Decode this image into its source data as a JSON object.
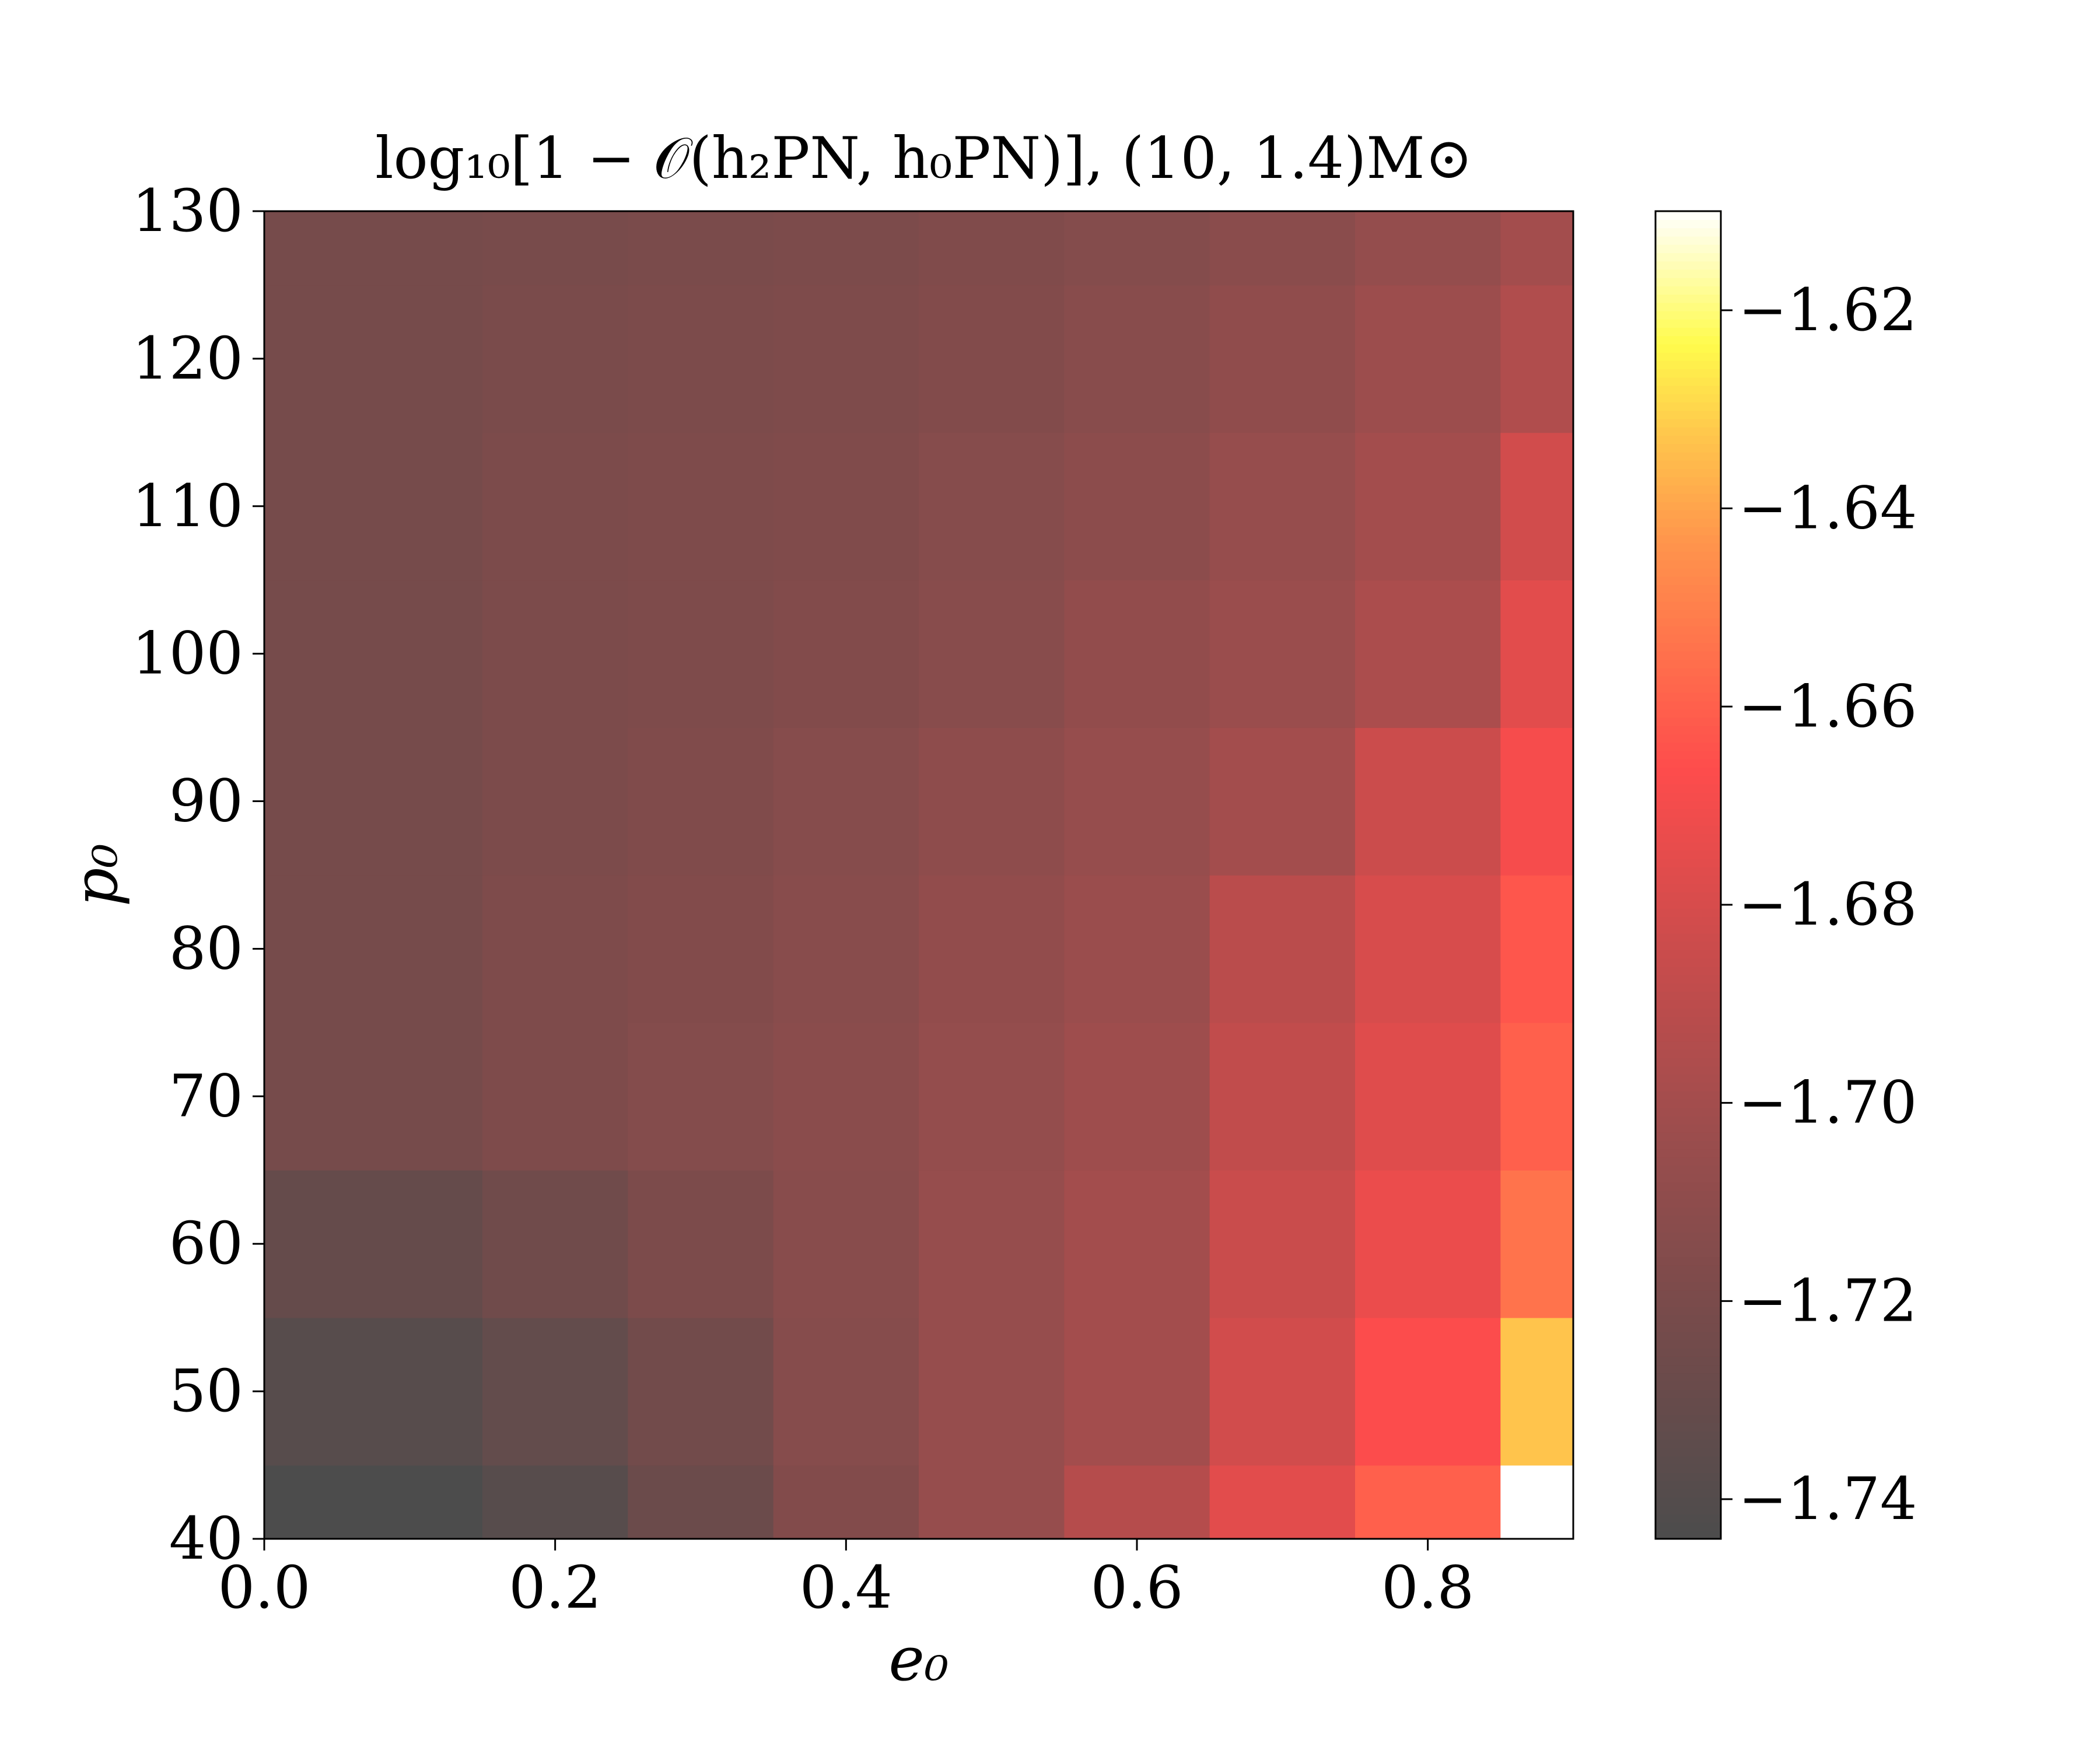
{
  "chart_data": {
    "type": "heatmap",
    "title": "log₁₀[1 − 𝒪(h₂PN, h₀PN)], (10, 1.4)M⊙",
    "xlabel": "e₀",
    "ylabel": "p₀",
    "x_ticks": [
      "0.0",
      "0.2",
      "0.4",
      "0.6",
      "0.8"
    ],
    "x_tick_values": [
      0.0,
      0.2,
      0.4,
      0.6,
      0.8
    ],
    "y_ticks": [
      "40",
      "50",
      "60",
      "70",
      "80",
      "90",
      "100",
      "110",
      "120",
      "130"
    ],
    "y_tick_values": [
      40,
      50,
      60,
      70,
      80,
      90,
      100,
      110,
      120,
      130
    ],
    "xlim": [
      0.0,
      0.9
    ],
    "ylim": [
      40,
      130
    ],
    "x_centers": [
      0.0,
      0.1,
      0.2,
      0.3,
      0.4,
      0.5,
      0.6,
      0.7,
      0.8,
      0.9
    ],
    "y_centers": [
      40,
      50,
      60,
      70,
      80,
      90,
      100,
      110,
      120,
      130
    ],
    "colormap": "hot (alpha 0.7)",
    "colorbar": {
      "vmin": -1.744,
      "vmax": -1.61,
      "ticks": [
        "−1.62",
        "−1.64",
        "−1.66",
        "−1.68",
        "−1.70",
        "−1.72",
        "−1.74"
      ],
      "tick_values": [
        -1.62,
        -1.64,
        -1.66,
        -1.68,
        -1.7,
        -1.72,
        -1.74
      ]
    },
    "values": [
      [
        -1.744,
        -1.744,
        -1.738,
        -1.728,
        -1.716,
        -1.706,
        -1.693,
        -1.676,
        -1.66,
        -1.61
      ],
      [
        -1.738,
        -1.738,
        -1.732,
        -1.724,
        -1.714,
        -1.706,
        -1.7,
        -1.682,
        -1.667,
        -1.633
      ],
      [
        -1.731,
        -1.731,
        -1.725,
        -1.719,
        -1.713,
        -1.706,
        -1.7,
        -1.685,
        -1.673,
        -1.654
      ],
      [
        -1.722,
        -1.722,
        -1.718,
        -1.715,
        -1.712,
        -1.707,
        -1.702,
        -1.688,
        -1.677,
        -1.66
      ],
      [
        -1.722,
        -1.722,
        -1.718,
        -1.716,
        -1.713,
        -1.708,
        -1.704,
        -1.691,
        -1.68,
        -1.663
      ],
      [
        -1.722,
        -1.722,
        -1.719,
        -1.717,
        -1.714,
        -1.71,
        -1.706,
        -1.7,
        -1.684,
        -1.669
      ],
      [
        -1.722,
        -1.722,
        -1.719,
        -1.718,
        -1.716,
        -1.713,
        -1.708,
        -1.704,
        -1.697,
        -1.676
      ],
      [
        -1.722,
        -1.722,
        -1.719,
        -1.718,
        -1.717,
        -1.714,
        -1.711,
        -1.706,
        -1.7,
        -1.682
      ],
      [
        -1.722,
        -1.722,
        -1.72,
        -1.719,
        -1.718,
        -1.716,
        -1.713,
        -1.709,
        -1.703,
        -1.695
      ],
      [
        -1.722,
        -1.722,
        -1.721,
        -1.72,
        -1.719,
        -1.717,
        -1.715,
        -1.712,
        -1.707,
        -1.7
      ]
    ]
  },
  "colors": {
    "stops": [
      [
        0.0,
        "#4c4c4c"
      ],
      [
        0.18,
        "#7a4b4b"
      ],
      [
        0.3,
        "#9a4d4d"
      ],
      [
        0.45,
        "#cc4c4c"
      ],
      [
        0.58,
        "#fe4c4c"
      ],
      [
        0.66,
        "#ff6e4c"
      ],
      [
        0.75,
        "#ff944c"
      ],
      [
        0.83,
        "#ffc54c"
      ],
      [
        0.9,
        "#fffb4c"
      ],
      [
        1.0,
        "#ffffff"
      ]
    ]
  }
}
